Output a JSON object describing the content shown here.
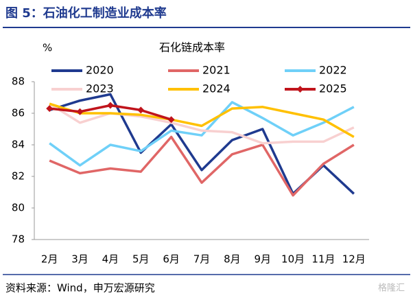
{
  "chart_data": {
    "type": "line",
    "title": "图 5：石油化工制造业成本率",
    "subtitle": "石化链成本率",
    "y_label": "%",
    "source": "资料来源：Wind，申万宏源研究",
    "watermark": "格隆汇",
    "categories": [
      "2月",
      "3月",
      "4月",
      "5月",
      "6月",
      "7月",
      "8月",
      "9月",
      "10月",
      "11月",
      "12月"
    ],
    "series": [
      {
        "name": "2020",
        "color": "#1f3a8f",
        "values": [
          86.2,
          86.8,
          87.2,
          83.5,
          85.3,
          82.4,
          84.3,
          85.0,
          80.9,
          82.7,
          80.9
        ]
      },
      {
        "name": "2021",
        "color": "#e06666",
        "values": [
          83.0,
          82.2,
          82.5,
          82.3,
          84.5,
          81.6,
          83.4,
          84.0,
          80.8,
          82.8,
          84.0
        ]
      },
      {
        "name": "2022",
        "color": "#6fd0f8",
        "values": [
          84.1,
          82.7,
          84.0,
          83.6,
          84.9,
          84.6,
          86.7,
          85.7,
          84.6,
          85.4,
          86.4
        ]
      },
      {
        "name": "2023",
        "color": "#f8d0d0",
        "values": [
          86.6,
          85.4,
          86.0,
          85.8,
          85.4,
          84.9,
          84.8,
          84.1,
          84.2,
          84.2,
          85.1
        ]
      },
      {
        "name": "2024",
        "color": "#ffc000",
        "values": [
          86.6,
          86.0,
          86.0,
          85.9,
          85.6,
          85.2,
          86.3,
          86.4,
          86.0,
          85.6,
          84.5
        ]
      },
      {
        "name": "2025",
        "color": "#c0141c",
        "marker": true,
        "values": [
          86.3,
          86.1,
          86.5,
          86.2,
          85.6,
          null,
          null,
          null,
          null,
          null,
          null
        ]
      }
    ],
    "ylim": [
      78,
      88
    ],
    "yticks": [
      78,
      80,
      82,
      84,
      86,
      88
    ],
    "grid": false
  }
}
